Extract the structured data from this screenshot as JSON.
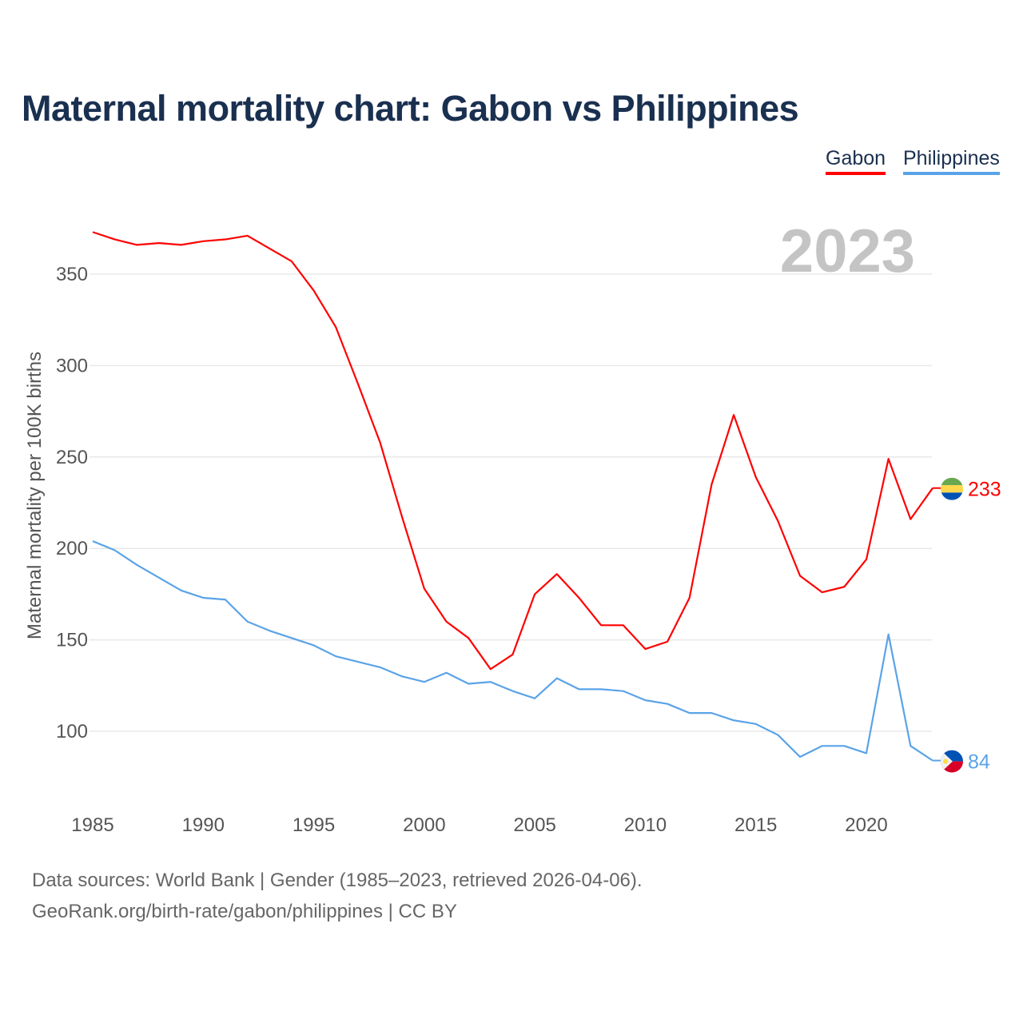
{
  "title": "Maternal mortality chart: Gabon vs Philippines",
  "footer": {
    "line1": "Data sources: World Bank | Gender (1985–2023, retrieved 2026-04-06).",
    "line2": "GeoRank.org/birth-rate/gabon/philippines | CC BY"
  },
  "chart_data": {
    "type": "line",
    "title": "Maternal mortality chart: Gabon vs Philippines",
    "xlabel": "",
    "ylabel": "Maternal mortality per 100K births",
    "year_label": "2023",
    "xlim": [
      1985,
      2023.5
    ],
    "ylim": [
      70,
      380
    ],
    "xticks": [
      1985,
      1990,
      1995,
      2000,
      2005,
      2010,
      2015,
      2020
    ],
    "yticks": [
      100,
      150,
      200,
      250,
      300,
      350
    ],
    "grid": true,
    "legend": "top-right",
    "x": [
      1985,
      1986,
      1987,
      1988,
      1989,
      1990,
      1991,
      1992,
      1993,
      1994,
      1995,
      1996,
      1997,
      1998,
      1999,
      2000,
      2001,
      2002,
      2003,
      2004,
      2005,
      2006,
      2007,
      2008,
      2009,
      2010,
      2011,
      2012,
      2013,
      2014,
      2015,
      2016,
      2017,
      2018,
      2019,
      2020,
      2021,
      2022,
      2023
    ],
    "series": [
      {
        "name": "Gabon",
        "color": "#ff0000",
        "end_label": "233",
        "values": [
          373,
          369,
          366,
          367,
          366,
          368,
          369,
          371,
          364,
          357,
          341,
          321,
          290,
          258,
          217,
          178,
          160,
          151,
          134,
          142,
          175,
          186,
          173,
          158,
          158,
          145,
          149,
          173,
          235,
          273,
          239,
          215,
          185,
          176,
          179,
          194,
          249,
          216,
          233
        ]
      },
      {
        "name": "Philippines",
        "color": "#5aa3e8",
        "end_label": "84",
        "values": [
          204,
          199,
          191,
          184,
          177,
          173,
          172,
          160,
          155,
          151,
          147,
          141,
          138,
          135,
          130,
          127,
          132,
          126,
          127,
          122,
          118,
          129,
          123,
          123,
          122,
          117,
          115,
          110,
          110,
          106,
          104,
          98,
          86,
          92,
          92,
          88,
          153,
          92,
          84
        ]
      }
    ]
  }
}
